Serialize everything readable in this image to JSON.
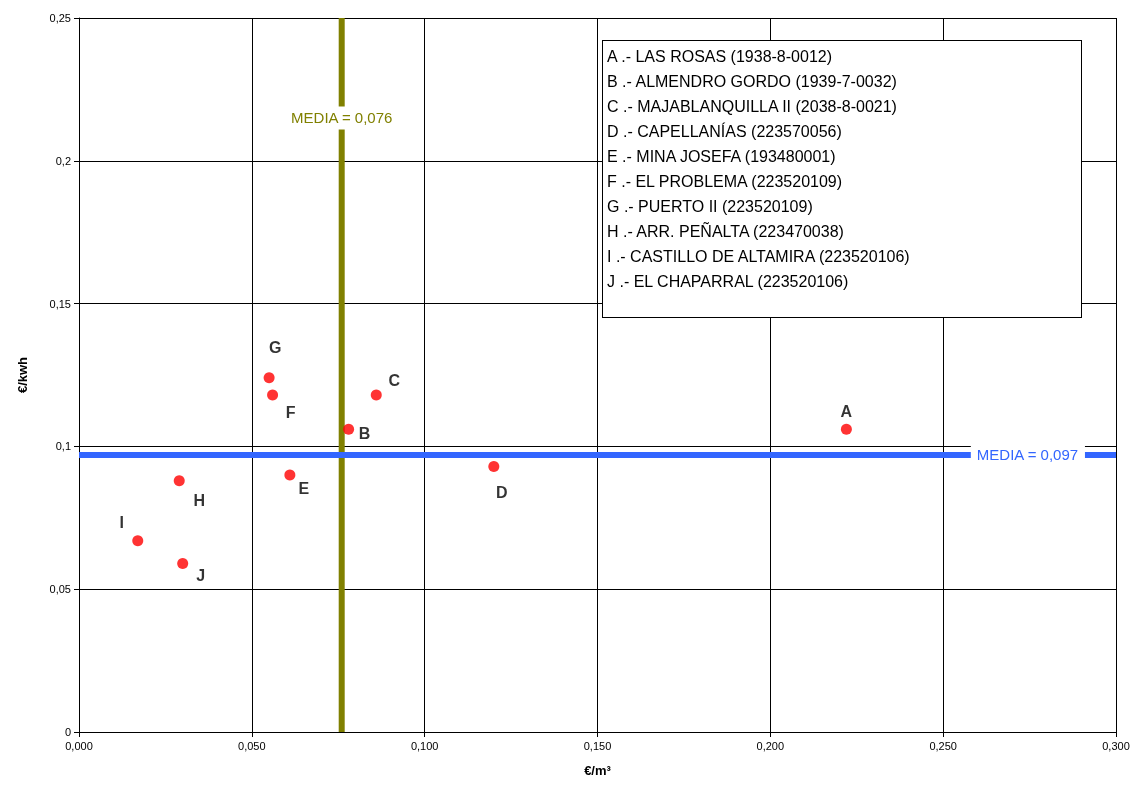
{
  "chart_data": {
    "type": "scatter",
    "xlabel": "€/m³",
    "ylabel": "€/kwh",
    "x": [
      0.222,
      0.078,
      0.086,
      0.12,
      0.061,
      0.056,
      0.055,
      0.029,
      0.017,
      0.03
    ],
    "series": [
      {
        "color": "#ff0000",
        "values": [
          0.106,
          0.106,
          0.118,
          0.093,
          0.09,
          0.118,
          0.124,
          0.088,
          0.067,
          0.059
        ]
      }
    ],
    "marker": "circle",
    "grid": true,
    "xlim": [
      0,
      0.3
    ],
    "ylim": [
      0,
      0.25
    ],
    "xticks": [
      {
        "value": 0,
        "label": "0,000"
      },
      {
        "value": 0.05,
        "label": "0,050"
      },
      {
        "value": 0.1,
        "label": "0,100"
      },
      {
        "value": 0.15,
        "label": "0,150"
      },
      {
        "value": 0.2,
        "label": "0,200"
      },
      {
        "value": 0.25,
        "label": "0,250"
      },
      {
        "value": 0.3,
        "label": "0,300"
      }
    ],
    "yticks": [
      0,
      {
        "value": 0.05,
        "label": "0,05"
      },
      {
        "value": 0.1,
        "label": "0,1"
      },
      {
        "value": 0.15,
        "label": "0,15"
      },
      {
        "value": 0.2,
        "label": "0,2"
      },
      {
        "value": 0.25,
        "label": "0,25"
      }
    ],
    "ref_lines": [
      {
        "axis": "x",
        "value": 0.076,
        "label": "MEDIA = 0,076",
        "color": "#808000"
      },
      {
        "axis": "y",
        "value": 0.097,
        "label": "MEDIA = 0,097",
        "color": "#3366ff"
      }
    ],
    "annotations": [
      {
        "text": "A",
        "x": 0.222,
        "y": 0.106
      },
      {
        "text": "B",
        "x": 0.078,
        "y": 0.106
      },
      {
        "text": "C",
        "x": 0.086,
        "y": 0.118
      },
      {
        "text": "D",
        "x": 0.12,
        "y": 0.093
      },
      {
        "text": "E",
        "x": 0.061,
        "y": 0.09
      },
      {
        "text": "F",
        "x": 0.056,
        "y": 0.118
      },
      {
        "text": "G",
        "x": 0.055,
        "y": 0.124
      },
      {
        "text": "H",
        "x": 0.029,
        "y": 0.088
      },
      {
        "text": "I",
        "x": 0.017,
        "y": 0.067
      },
      {
        "text": "J",
        "x": 0.03,
        "y": 0.059
      },
      "A .- LAS ROSAS (1938-8-0012)",
      "B .- ALMENDRO GORDO (1939-7-0032)",
      "C .- MAJABLANQUILLA II (2038-8-0021)",
      "D .- CAPELLANÍAS (223570056)",
      "E .- MINA JOSEFA (193480001)",
      "F .- EL PROBLEMA (223520109)",
      "G .- PUERTO II (223520109)",
      "H .- ARR. PEÑALTA (223470038)",
      "I .- CASTILLO DE ALTAMIRA (223520106)",
      "J .- EL CHAPARRAL (223520106)"
    ]
  }
}
